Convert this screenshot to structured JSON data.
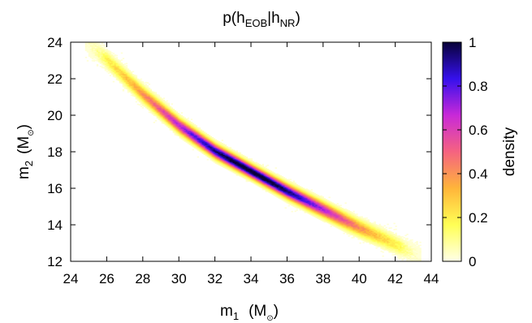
{
  "chart_data": {
    "type": "heatmap",
    "title": {
      "base": "p(h",
      "sub1": "EOB",
      "mid": "|h",
      "sub2": "NR",
      "end": ")"
    },
    "xlabel": {
      "base": "m",
      "sub": "1",
      "unit_open": "(M",
      "unit_sub": "⊙",
      "unit_close": ")"
    },
    "ylabel": {
      "base": "m",
      "sub": "2",
      "unit_open": "(M",
      "unit_sub": "⊙",
      "unit_close": ")"
    },
    "xlim": [
      24,
      44
    ],
    "ylim": [
      12,
      24
    ],
    "xticks": [
      "24",
      "26",
      "28",
      "30",
      "32",
      "34",
      "36",
      "38",
      "40",
      "42",
      "44"
    ],
    "yticks": [
      "12",
      "14",
      "16",
      "18",
      "20",
      "22",
      "24"
    ],
    "colorbar": {
      "label": "density",
      "range": [
        0,
        1
      ],
      "ticks": [
        "0",
        "0.2",
        "0.4",
        "0.6",
        "0.8",
        "1"
      ],
      "colors": [
        "#ffffe8",
        "#ffff55",
        "#ffb53a",
        "#f56380",
        "#c829d8",
        "#3510ec",
        "#080238"
      ]
    },
    "ridge": {
      "m1": [
        24.8,
        26,
        28,
        30,
        32,
        34,
        36,
        38,
        40,
        42,
        43.4
      ],
      "m2": [
        24.0,
        23.0,
        21.1,
        19.4,
        18.0,
        16.9,
        15.8,
        14.8,
        13.8,
        12.9,
        12.2
      ]
    },
    "density_peak_m1": 34,
    "density_range_m1": [
      24.8,
      43.4
    ]
  }
}
